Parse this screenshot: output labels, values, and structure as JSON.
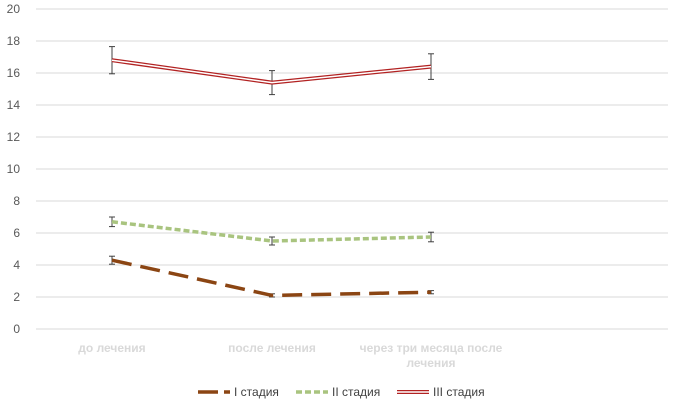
{
  "chart_data": {
    "type": "line",
    "categories": [
      "до лечения",
      "после лечения",
      "через три месяца после лечения"
    ],
    "ylim": [
      0,
      20
    ],
    "yticks": [
      0,
      2,
      4,
      6,
      8,
      10,
      12,
      14,
      16,
      18,
      20
    ],
    "grid": true,
    "legend_position": "bottom",
    "series": [
      {
        "name": "I стадия",
        "values": [
          4.3,
          2.1,
          2.3
        ],
        "errors": [
          0.25,
          0.1,
          0.1
        ],
        "color": "#8b4513",
        "style": "long-dash"
      },
      {
        "name": "II стадия",
        "values": [
          6.7,
          5.5,
          5.75
        ],
        "errors": [
          0.3,
          0.25,
          0.3
        ],
        "color": "#a9c47f",
        "style": "short-dash"
      },
      {
        "name": "III стадия",
        "values": [
          16.8,
          15.4,
          16.4
        ],
        "errors": [
          0.85,
          0.75,
          0.8
        ],
        "color": "#b22222",
        "style": "double"
      }
    ]
  }
}
